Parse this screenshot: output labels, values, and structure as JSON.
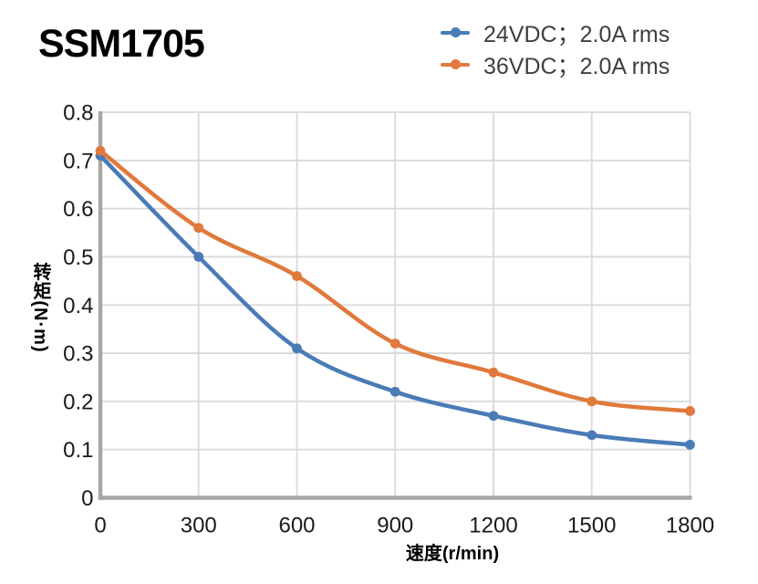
{
  "title": "SSM1705",
  "chart_data": {
    "type": "line",
    "title": "SSM1705",
    "x": [
      0,
      300,
      600,
      900,
      1200,
      1500,
      1800
    ],
    "series": [
      {
        "name": "24VDC；2.0A rms",
        "color": "#4a7bb7",
        "values": [
          0.71,
          0.5,
          0.31,
          0.22,
          0.17,
          0.13,
          0.11
        ]
      },
      {
        "name": "36VDC；2.0A rms",
        "color": "#e0793c",
        "values": [
          0.72,
          0.56,
          0.46,
          0.32,
          0.26,
          0.2,
          0.18
        ]
      }
    ],
    "xlabel": "速度(r/min)",
    "ylabel": "转矩(N·m)",
    "xlim": [
      0,
      1800
    ],
    "ylim": [
      0,
      0.8
    ],
    "xticks": [
      {
        "value": 0,
        "label": "0"
      },
      {
        "value": 300,
        "label": "300"
      },
      {
        "value": 600,
        "label": "600"
      },
      {
        "value": 900,
        "label": "900"
      },
      {
        "value": 1200,
        "label": "1200"
      },
      {
        "value": 1500,
        "label": "1500"
      },
      {
        "value": 1800,
        "label": "1800"
      }
    ],
    "yticks": [
      {
        "value": 0,
        "label": "0"
      },
      {
        "value": 0.1,
        "label": "0.1"
      },
      {
        "value": 0.2,
        "label": "0.2"
      },
      {
        "value": 0.3,
        "label": "0.3"
      },
      {
        "value": 0.4,
        "label": "0.4"
      },
      {
        "value": 0.5,
        "label": "0.5"
      },
      {
        "value": 0.6,
        "label": "0.6"
      },
      {
        "value": 0.7,
        "label": "0.7"
      },
      {
        "value": 0.8,
        "label": "0.8"
      }
    ],
    "grid": true,
    "smooth": true,
    "grid_color": "#d9d9d9",
    "axis_color": "#a6a6a6",
    "tick_color": "#1a1a1a",
    "legend_position": "top-right",
    "legend_text_color": "#3f3f3f"
  }
}
